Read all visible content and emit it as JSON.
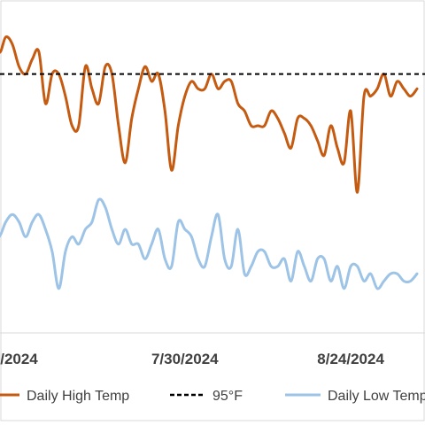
{
  "chart_data": {
    "type": "line",
    "title": "",
    "xlabel": "",
    "ylabel": "",
    "x_tick_labels": [
      "/2024",
      "7/30/2024",
      "8/24/2024"
    ],
    "x_tick_dates": [
      "2024-07-05",
      "2024-07-30",
      "2024-08-24"
    ],
    "x_range": [
      "2024-06-30",
      "2024-09-09"
    ],
    "y_unit": "°F",
    "y_range": [
      60,
      105
    ],
    "grid": false,
    "legend_position": "bottom",
    "series": [
      {
        "name": "Daily High Temp",
        "color": "#c55a11",
        "dates": [
          "2024-06-30",
          "2024-07-01",
          "2024-07-02",
          "2024-07-03",
          "2024-07-04",
          "2024-07-05",
          "2024-07-06",
          "2024-07-07",
          "2024-07-08",
          "2024-07-09",
          "2024-07-10",
          "2024-07-11",
          "2024-07-12",
          "2024-07-13",
          "2024-07-14",
          "2024-07-15",
          "2024-07-16",
          "2024-07-17",
          "2024-07-18",
          "2024-07-19",
          "2024-07-20",
          "2024-07-21",
          "2024-07-22",
          "2024-07-23",
          "2024-07-24",
          "2024-07-25",
          "2024-07-26",
          "2024-07-27",
          "2024-07-28",
          "2024-07-29",
          "2024-07-30",
          "2024-07-31",
          "2024-08-01",
          "2024-08-02",
          "2024-08-03",
          "2024-08-04",
          "2024-08-05",
          "2024-08-06",
          "2024-08-07",
          "2024-08-08",
          "2024-08-09",
          "2024-08-10",
          "2024-08-11",
          "2024-08-12",
          "2024-08-13",
          "2024-08-14",
          "2024-08-15",
          "2024-08-16",
          "2024-08-17",
          "2024-08-18",
          "2024-08-19",
          "2024-08-20",
          "2024-08-21",
          "2024-08-22",
          "2024-08-23",
          "2024-08-24",
          "2024-08-25",
          "2024-08-26",
          "2024-08-27",
          "2024-08-28",
          "2024-08-29",
          "2024-08-30",
          "2024-08-31",
          "2024-09-01",
          "2024-09-02",
          "2024-09-03"
        ],
        "values": [
          101,
          103,
          98,
          100,
          99,
          96,
          95,
          97,
          98,
          91,
          95,
          95,
          92,
          88,
          88,
          96,
          93,
          91,
          96,
          95,
          88,
          83,
          89,
          93,
          96,
          94,
          95,
          90,
          82,
          88,
          92,
          94,
          93,
          93,
          95,
          93,
          94,
          94,
          91,
          90,
          88,
          88,
          88,
          90,
          89,
          87,
          85,
          89,
          89,
          88,
          86,
          84,
          88,
          85,
          83,
          90,
          79,
          92,
          92,
          93,
          95,
          92,
          94,
          93,
          92,
          93
        ]
      },
      {
        "name": "95°F",
        "color": "#000000",
        "dash": true,
        "value": 95
      },
      {
        "name": "Daily Low Temp",
        "color": "#9dc3e6",
        "dates": [
          "2024-06-30",
          "2024-07-01",
          "2024-07-02",
          "2024-07-03",
          "2024-07-04",
          "2024-07-05",
          "2024-07-06",
          "2024-07-07",
          "2024-07-08",
          "2024-07-09",
          "2024-07-10",
          "2024-07-11",
          "2024-07-12",
          "2024-07-13",
          "2024-07-14",
          "2024-07-15",
          "2024-07-16",
          "2024-07-17",
          "2024-07-18",
          "2024-07-19",
          "2024-07-20",
          "2024-07-21",
          "2024-07-22",
          "2024-07-23",
          "2024-07-24",
          "2024-07-25",
          "2024-07-26",
          "2024-07-27",
          "2024-07-28",
          "2024-07-29",
          "2024-07-30",
          "2024-07-31",
          "2024-08-01",
          "2024-08-02",
          "2024-08-03",
          "2024-08-04",
          "2024-08-05",
          "2024-08-06",
          "2024-08-07",
          "2024-08-08",
          "2024-08-09",
          "2024-08-10",
          "2024-08-11",
          "2024-08-12",
          "2024-08-13",
          "2024-08-14",
          "2024-08-15",
          "2024-08-16",
          "2024-08-17",
          "2024-08-18",
          "2024-08-19",
          "2024-08-20",
          "2024-08-21",
          "2024-08-22",
          "2024-08-23",
          "2024-08-24",
          "2024-08-25",
          "2024-08-26",
          "2024-08-27",
          "2024-08-28",
          "2024-08-29",
          "2024-08-30",
          "2024-08-31",
          "2024-09-01",
          "2024-09-02",
          "2024-09-03"
        ],
        "values": [
          72,
          74,
          73,
          75,
          76,
          75,
          73,
          75,
          76,
          74,
          71,
          66,
          71,
          73,
          72,
          74,
          75,
          78,
          77,
          74,
          72,
          74,
          72,
          72,
          70,
          72,
          74,
          70,
          69,
          75,
          74,
          73,
          70,
          69,
          73,
          76,
          70,
          69,
          74,
          68,
          69,
          71,
          71,
          69,
          69,
          70,
          67,
          71,
          69,
          67,
          70,
          70,
          67,
          69,
          66,
          69,
          69,
          67,
          68,
          66,
          67,
          68,
          68,
          67,
          67,
          68
        ]
      }
    ]
  }
}
